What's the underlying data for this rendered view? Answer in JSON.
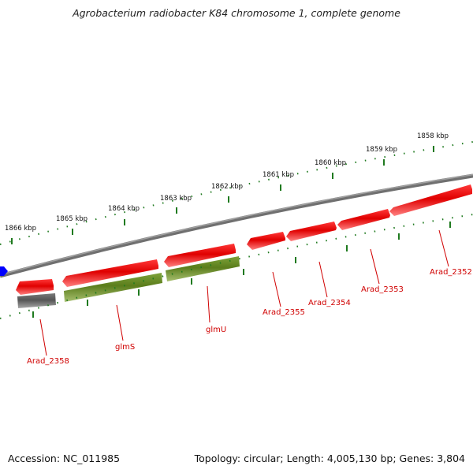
{
  "title": "Agrobacterium radiobacter K84 chromosome 1, complete genome",
  "footer": {
    "accession": "Accession: NC_011985",
    "topology": "Topology: circular; Length: 4,005,130 bp; Genes: 3,804"
  },
  "colors": {
    "backbone": "#808080",
    "tick": "#1f7a1f",
    "gene_red": "#e00000",
    "gene_green": "#6b8e23",
    "gene_grey": "#606060",
    "marker_blue": "#0000ff",
    "label_red": "#d00000"
  },
  "scale_labels": [
    "1858 kbp",
    "1859 kbp",
    "1860 kbp",
    "1861 kbp",
    "1862 kbp",
    "1863 kbp",
    "1864 kbp",
    "1865 kbp",
    "1866 kbp"
  ],
  "gene_labels": [
    "Arad_2352",
    "Arad_2353",
    "Arad_2354",
    "Arad_2355",
    "glmU",
    "glmS",
    "Arad_2358"
  ]
}
